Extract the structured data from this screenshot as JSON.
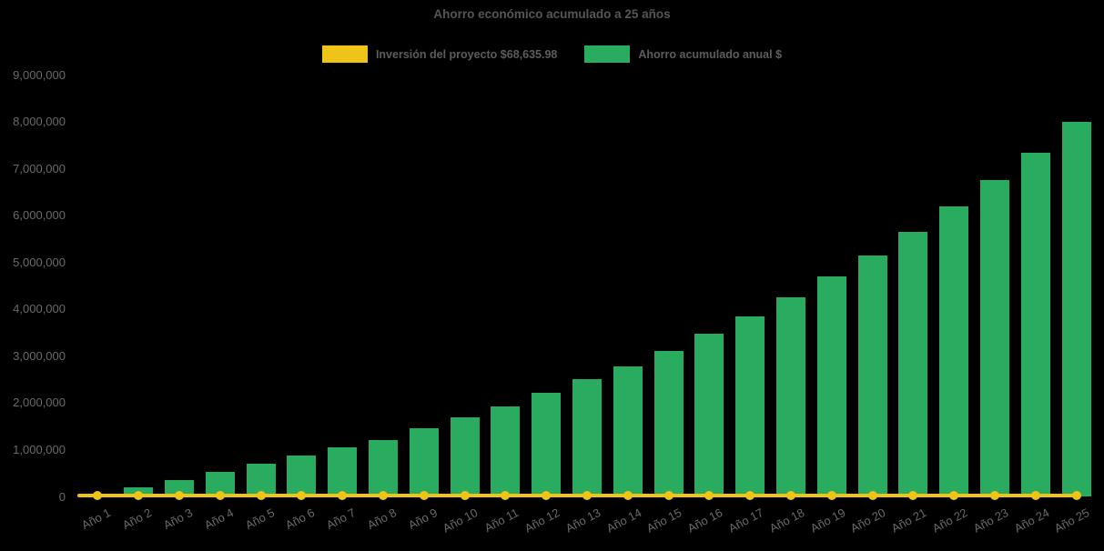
{
  "title": "Ahorro económico acumulado a 25 años",
  "legend": [
    {
      "label": "Inversión del proyecto $68,635.98",
      "color": "#EFC419",
      "series": "investment-line"
    },
    {
      "label": "Ahorro acumulado anual $",
      "color": "#29AC5F",
      "series": "savings-bars"
    }
  ],
  "colors": {
    "background": "#000000",
    "title_text": "#565656",
    "legend_text": "#5c5c5c",
    "axis_text": "#6a6a6a",
    "bar_green": "#29AC5F",
    "line_yellow": "#EFC419"
  },
  "chart_data": {
    "type": "bar",
    "title": "Ahorro económico acumulado a 25 años",
    "categories": [
      "Año 1",
      "Año 2",
      "Año 3",
      "Año 4",
      "Año 5",
      "Año 6",
      "Año 7",
      "Año 8",
      "Año 9",
      "Año 10",
      "Año 11",
      "Año 12",
      "Año 13",
      "Año 14",
      "Año 15",
      "Año 16",
      "Año 17",
      "Año 18",
      "Año 19",
      "Año 20",
      "Año 21",
      "Año 22",
      "Año 23",
      "Año 24",
      "Año 25"
    ],
    "series": [
      {
        "name": "Ahorro acumulado anual $",
        "type": "bar",
        "color": "#29AC5F",
        "values": [
          50000,
          200000,
          350000,
          520000,
          690000,
          870000,
          1040000,
          1210000,
          1450000,
          1690000,
          1930000,
          2210000,
          2500000,
          2780000,
          3110000,
          3470000,
          3850000,
          4250000,
          4700000,
          5150000,
          5640000,
          6180000,
          6750000,
          7340000,
          8000000
        ]
      },
      {
        "name": "Inversión del proyecto $68,635.98",
        "type": "line",
        "color": "#EFC419",
        "constant_value": 68635.98,
        "marker": "circle"
      }
    ],
    "xlabel": "",
    "ylabel": "",
    "ylim": [
      0,
      9000000
    ],
    "ytick_step": 1000000,
    "ytick_labels": [
      "0",
      "1,000,000",
      "2,000,000",
      "3,000,000",
      "4,000,000",
      "5,000,000",
      "6,000,000",
      "7,000,000",
      "8,000,000",
      "9,000,000"
    ],
    "grid": false,
    "legend_position": "top-center"
  }
}
